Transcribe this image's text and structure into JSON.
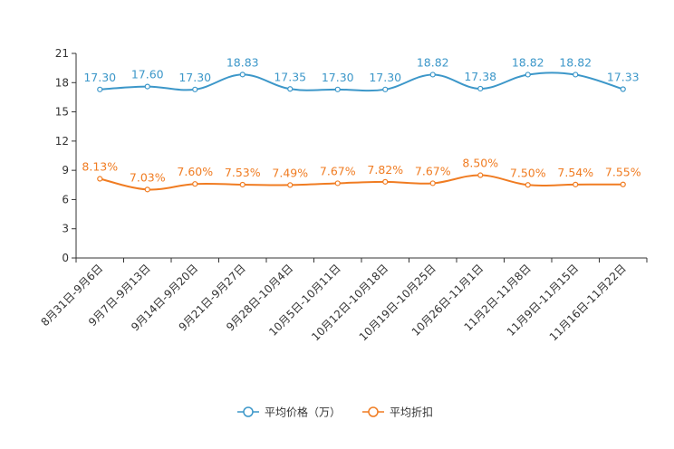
{
  "chart_data": {
    "type": "line",
    "categories": [
      "8月31日-9月6日",
      "9月7日-9月13日",
      "9月14日-9月20日",
      "9月21日-9月27日",
      "9月28日-10月4日",
      "10月5日-10月11日",
      "10月12日-10月18日",
      "10月19日-10月25日",
      "10月26日-11月1日",
      "11月2日-11月8日",
      "11月9日-11月15日",
      "11月16日-11月22日"
    ],
    "yticks": [
      "0",
      "3",
      "6",
      "9",
      "12",
      "15",
      "18",
      "21"
    ],
    "ylim": [
      0,
      21
    ],
    "series": [
      {
        "name": "平均价格（万）",
        "color": "#3c97c9",
        "values": [
          17.3,
          17.6,
          17.3,
          18.83,
          17.35,
          17.3,
          17.3,
          18.82,
          17.38,
          18.82,
          18.82,
          17.33
        ],
        "labels": [
          "17.30",
          "17.60",
          "17.30",
          "18.83",
          "17.35",
          "17.30",
          "17.30",
          "18.82",
          "17.38",
          "18.82",
          "18.82",
          "17.33"
        ]
      },
      {
        "name": "平均折扣",
        "color": "#f07c22",
        "values": [
          8.13,
          7.03,
          7.6,
          7.53,
          7.49,
          7.67,
          7.82,
          7.67,
          8.5,
          7.5,
          7.54,
          7.55
        ],
        "labels": [
          "8.13%",
          "7.03%",
          "7.60%",
          "7.53%",
          "7.49%",
          "7.67%",
          "7.82%",
          "7.67%",
          "8.50%",
          "7.50%",
          "7.54%",
          "7.55%"
        ]
      }
    ],
    "legend_position": "bottom-center"
  }
}
